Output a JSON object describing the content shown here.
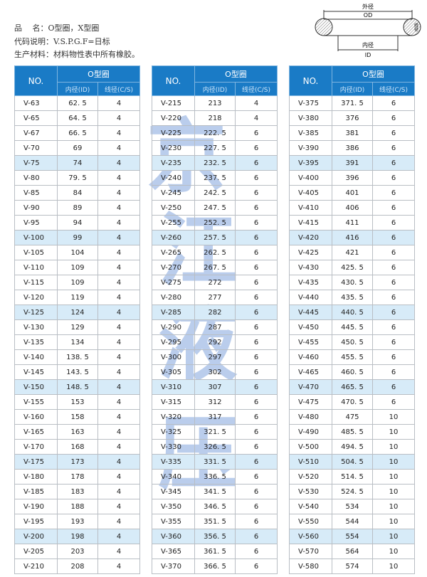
{
  "info": {
    "line1": "品　 名：O型圈，X型圈",
    "line2": "代码说明：V.S.P.G.F=日标",
    "line3": "生产材料：材料物性表中所有橡胶。"
  },
  "diagram": {
    "od_cn": "外径",
    "od": "OD",
    "id_cn": "内径",
    "id": "ID",
    "cs_cn": "线径",
    "cs": "C/S"
  },
  "header": {
    "no": "NO.",
    "group": "O型圈",
    "id": "内径(ID)",
    "cs": "线径(C/S)"
  },
  "watermark": [
    "京",
    "江",
    "液",
    "压"
  ],
  "colors": {
    "header": "#1a7bc6",
    "highlight": "#d7ebf8"
  },
  "tables": [
    {
      "rows": [
        [
          "V-63",
          "62. 5",
          "4"
        ],
        [
          "V-65",
          "64. 5",
          "4"
        ],
        [
          "V-67",
          "66. 5",
          "4"
        ],
        [
          "V-70",
          "69",
          "4"
        ],
        [
          "V-75",
          "74",
          "4"
        ],
        [
          "V-80",
          "79. 5",
          "4"
        ],
        [
          "V-85",
          "84",
          "4"
        ],
        [
          "V-90",
          "89",
          "4"
        ],
        [
          "V-95",
          "94",
          "4"
        ],
        [
          "V-100",
          "99",
          "4"
        ],
        [
          "V-105",
          "104",
          "4"
        ],
        [
          "V-110",
          "109",
          "4"
        ],
        [
          "V-115",
          "109",
          "4"
        ],
        [
          "V-120",
          "119",
          "4"
        ],
        [
          "V-125",
          "124",
          "4"
        ],
        [
          "V-130",
          "129",
          "4"
        ],
        [
          "V-135",
          "134",
          "4"
        ],
        [
          "V-140",
          "138. 5",
          "4"
        ],
        [
          "V-145",
          "143. 5",
          "4"
        ],
        [
          "V-150",
          "148. 5",
          "4"
        ],
        [
          "V-155",
          "153",
          "4"
        ],
        [
          "V-160",
          "158",
          "4"
        ],
        [
          "V-165",
          "163",
          "4"
        ],
        [
          "V-170",
          "168",
          "4"
        ],
        [
          "V-175",
          "173",
          "4"
        ],
        [
          "V-180",
          "178",
          "4"
        ],
        [
          "V-185",
          "183",
          "4"
        ],
        [
          "V-190",
          "188",
          "4"
        ],
        [
          "V-195",
          "193",
          "4"
        ],
        [
          "V-200",
          "198",
          "4"
        ],
        [
          "V-205",
          "203",
          "4"
        ],
        [
          "V-210",
          "208",
          "4"
        ]
      ]
    },
    {
      "rows": [
        [
          "V-215",
          "213",
          "4"
        ],
        [
          "V-220",
          "218",
          "4"
        ],
        [
          "V-225",
          "222. 5",
          "6"
        ],
        [
          "V-230",
          "227. 5",
          "6"
        ],
        [
          "V-235",
          "232. 5",
          "6"
        ],
        [
          "V-240",
          "237. 5",
          "6"
        ],
        [
          "V-245",
          "242. 5",
          "6"
        ],
        [
          "V-250",
          "247. 5",
          "6"
        ],
        [
          "V-255",
          "252. 5",
          "6"
        ],
        [
          "V-260",
          "257. 5",
          "6"
        ],
        [
          "V-265",
          "262. 5",
          "6"
        ],
        [
          "V-270",
          "267. 5",
          "6"
        ],
        [
          "V-275",
          "272",
          "6"
        ],
        [
          "V-280",
          "277",
          "6"
        ],
        [
          "V-285",
          "282",
          "6"
        ],
        [
          "V-290",
          "287",
          "6"
        ],
        [
          "V-295",
          "292",
          "6"
        ],
        [
          "V-300",
          "297",
          "6"
        ],
        [
          "V-305",
          "302",
          "6"
        ],
        [
          "V-310",
          "307",
          "6"
        ],
        [
          "V-315",
          "312",
          "6"
        ],
        [
          "V-320",
          "317",
          "6"
        ],
        [
          "V-325",
          "321. 5",
          "6"
        ],
        [
          "V-330",
          "326. 5",
          "6"
        ],
        [
          "V-335",
          "331. 5",
          "6"
        ],
        [
          "V-340",
          "336. 5",
          "6"
        ],
        [
          "V-345",
          "341. 5",
          "6"
        ],
        [
          "V-350",
          "346. 5",
          "6"
        ],
        [
          "V-355",
          "351. 5",
          "6"
        ],
        [
          "V-360",
          "356. 5",
          "6"
        ],
        [
          "V-365",
          "361. 5",
          "6"
        ],
        [
          "V-370",
          "366. 5",
          "6"
        ]
      ]
    },
    {
      "rows": [
        [
          "V-375",
          "371. 5",
          "6"
        ],
        [
          "V-380",
          "376",
          "6"
        ],
        [
          "V-385",
          "381",
          "6"
        ],
        [
          "V-390",
          "386",
          "6"
        ],
        [
          "V-395",
          "391",
          "6"
        ],
        [
          "V-400",
          "396",
          "6"
        ],
        [
          "V-405",
          "401",
          "6"
        ],
        [
          "V-410",
          "406",
          "6"
        ],
        [
          "V-415",
          "411",
          "6"
        ],
        [
          "V-420",
          "416",
          "6"
        ],
        [
          "V-425",
          "421",
          "6"
        ],
        [
          "V-430",
          "425. 5",
          "6"
        ],
        [
          "V-435",
          "430. 5",
          "6"
        ],
        [
          "V-440",
          "435. 5",
          "6"
        ],
        [
          "V-445",
          "440. 5",
          "6"
        ],
        [
          "V-450",
          "445. 5",
          "6"
        ],
        [
          "V-455",
          "450. 5",
          "6"
        ],
        [
          "V-460",
          "455. 5",
          "6"
        ],
        [
          "V-465",
          "460. 5",
          "6"
        ],
        [
          "V-470",
          "465. 5",
          "6"
        ],
        [
          "V-475",
          "470. 5",
          "6"
        ],
        [
          "V-480",
          "475",
          "10"
        ],
        [
          "V-490",
          "485. 5",
          "10"
        ],
        [
          "V-500",
          "494. 5",
          "10"
        ],
        [
          "V-510",
          "504. 5",
          "10"
        ],
        [
          "V-520",
          "514. 5",
          "10"
        ],
        [
          "V-530",
          "524. 5",
          "10"
        ],
        [
          "V-540",
          "534",
          "10"
        ],
        [
          "V-550",
          "544",
          "10"
        ],
        [
          "V-560",
          "554",
          "10"
        ],
        [
          "V-570",
          "564",
          "10"
        ],
        [
          "V-580",
          "574",
          "10"
        ]
      ]
    }
  ]
}
